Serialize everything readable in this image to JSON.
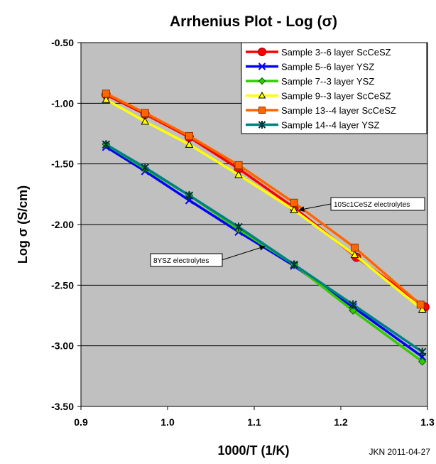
{
  "chart_data": {
    "type": "line",
    "title": "Arrhenius Plot - Log (σ)",
    "xlabel": "1000/T (1/K)",
    "ylabel": "Log σ  (S/cm)",
    "xlim": [
      0.9,
      1.3
    ],
    "ylim": [
      -3.5,
      -0.5
    ],
    "x_ticks": [
      0.9,
      1.0,
      1.1,
      1.2,
      1.3
    ],
    "x_tick_labels": [
      "0.9",
      "1.0",
      "1.1",
      "1.2",
      "1.3"
    ],
    "y_ticks": [
      -0.5,
      -1.0,
      -1.5,
      -2.0,
      -2.5,
      -3.0,
      -3.5
    ],
    "y_tick_labels": [
      "-0.50",
      "-1.00",
      "-1.50",
      "-2.00",
      "-2.50",
      "-3.00",
      "-3.50"
    ],
    "grid": "horizontal",
    "background": "#c0c0c0",
    "legend": "top-right",
    "series": [
      {
        "name": "Sample 3--6 layer ScCeSZ",
        "color": "#ff0000",
        "marker": "circle",
        "x": [
          0.929,
          0.974,
          1.025,
          1.082,
          1.146,
          1.218,
          1.297
        ],
        "y": [
          -0.93,
          -1.09,
          -1.28,
          -1.54,
          -1.86,
          -2.27,
          -2.68
        ]
      },
      {
        "name": "Sample 5--6 layer YSZ",
        "color": "#0000ff",
        "marker": "x",
        "x": [
          0.929,
          0.974,
          1.025,
          1.082,
          1.146,
          1.214,
          1.294
        ],
        "y": [
          -1.36,
          -1.56,
          -1.8,
          -2.06,
          -2.34,
          -2.68,
          -3.09
        ]
      },
      {
        "name": "Sample 7--3 layer YSZ",
        "color": "#33cc00",
        "marker": "diamond",
        "x": [
          0.929,
          0.974,
          1.025,
          1.082,
          1.146,
          1.214,
          1.294
        ],
        "y": [
          -1.34,
          -1.54,
          -1.76,
          -2.04,
          -2.33,
          -2.71,
          -3.13
        ]
      },
      {
        "name": "Sample 9--3 layer ScCeSZ",
        "color": "#ffff00",
        "marker": "triangle",
        "x": [
          0.929,
          0.974,
          1.025,
          1.082,
          1.146,
          1.216,
          1.294
        ],
        "y": [
          -0.97,
          -1.15,
          -1.34,
          -1.59,
          -1.88,
          -2.25,
          -2.7
        ]
      },
      {
        "name": "Sample 13--4 layer ScCeSZ",
        "color": "#ff6600",
        "marker": "square",
        "x": [
          0.929,
          0.974,
          1.025,
          1.082,
          1.146,
          1.216,
          1.292
        ],
        "y": [
          -0.92,
          -1.08,
          -1.27,
          -1.51,
          -1.82,
          -2.19,
          -2.66
        ]
      },
      {
        "name": "Sample 14--4 layer YSZ",
        "color": "#008080",
        "marker": "star",
        "x": [
          0.929,
          0.974,
          1.025,
          1.082,
          1.146,
          1.214,
          1.294
        ],
        "y": [
          -1.34,
          -1.53,
          -1.76,
          -2.02,
          -2.33,
          -2.66,
          -3.05
        ]
      }
    ],
    "annotations": [
      {
        "text": "10Sc1CeSZ electrolytes",
        "arrow_to": [
          1.152,
          -1.88
        ]
      },
      {
        "text": "8YSZ electrolytes",
        "arrow_to": [
          1.112,
          -2.18
        ]
      }
    ]
  },
  "footer": {
    "credit": "JKN 2011-04-27"
  }
}
